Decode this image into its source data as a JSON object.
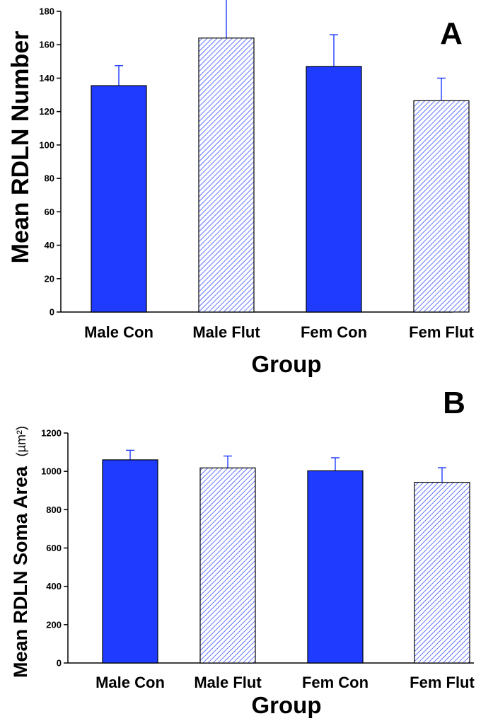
{
  "chart_data": [
    {
      "type": "bar",
      "panel": "A",
      "categories": [
        "Male Con",
        "Male Flut",
        "Fem Con",
        "Fem Flut"
      ],
      "values": [
        135.5,
        164,
        147,
        126.5
      ],
      "errors": [
        12,
        25,
        19,
        13.5
      ],
      "fills": [
        "solid",
        "hatched",
        "solid",
        "hatched"
      ],
      "ylabel": "Mean RDLN Number",
      "ylabel_unit": "",
      "xlabel": "Group",
      "ylim": [
        0,
        180
      ],
      "yticks": [
        0,
        20,
        40,
        60,
        80,
        100,
        120,
        140,
        160,
        180
      ],
      "grid": false
    },
    {
      "type": "bar",
      "panel": "B",
      "categories": [
        "Male Con",
        "Male Flut",
        "Fem Con",
        "Fem Flut"
      ],
      "values": [
        1060,
        1018,
        1003,
        943
      ],
      "errors": [
        50,
        62,
        68,
        76
      ],
      "fills": [
        "solid",
        "hatched",
        "solid",
        "hatched"
      ],
      "ylabel": "Mean RDLN Soma Area",
      "ylabel_unit": "(µm²)",
      "xlabel": "Group",
      "ylim": [
        0,
        1200
      ],
      "yticks": [
        0,
        200,
        400,
        600,
        800,
        1000,
        1200
      ],
      "grid": false
    }
  ],
  "colors": {
    "bar": "#1f3bff",
    "hatch": "#1f3bff",
    "error": "#1f3bff",
    "axis": "#000000"
  }
}
